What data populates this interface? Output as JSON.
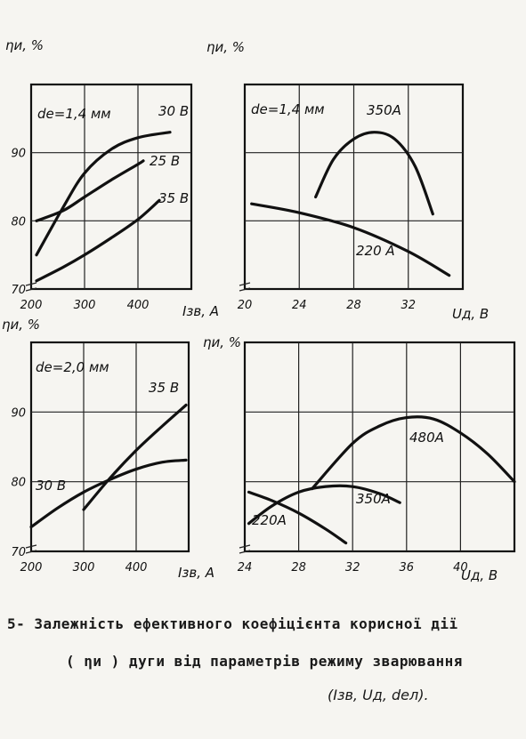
{
  "chart_data": [
    {
      "type": "line",
      "panel": "top-left",
      "ylabel": "ηи, %",
      "xlabel": "Iзв, A",
      "annotation": "de=1,4 мм",
      "xlim": [
        200,
        500
      ],
      "ylim": [
        70,
        100
      ],
      "xticks": [
        200,
        300,
        400
      ],
      "yticks": [
        70,
        80,
        90
      ],
      "series": [
        {
          "name": "30 B",
          "x": [
            210,
            260,
            300,
            350,
            400,
            460
          ],
          "y": [
            75,
            82,
            87,
            90.5,
            92.2,
            93
          ]
        },
        {
          "name": "25 B",
          "x": [
            210,
            260,
            300,
            350,
            400,
            410
          ],
          "y": [
            80,
            81.5,
            83.5,
            86,
            88.3,
            88.8
          ]
        },
        {
          "name": "35 B",
          "x": [
            210,
            260,
            300,
            350,
            400,
            440
          ],
          "y": [
            71.2,
            73.2,
            75,
            77.5,
            80.2,
            83
          ]
        }
      ]
    },
    {
      "type": "line",
      "panel": "top-right",
      "ylabel": "ηи, %",
      "xlabel": "Uд, B",
      "annotation": "de=1,4 мм",
      "xlim": [
        20,
        36
      ],
      "ylim": [
        70,
        100
      ],
      "xticks": [
        20,
        24,
        28,
        32
      ],
      "yticks": [],
      "series": [
        {
          "name": "350A",
          "x": [
            25.2,
            26.5,
            28,
            29.5,
            31,
            32.5,
            33.8
          ],
          "y": [
            83.5,
            89,
            92,
            93,
            92,
            88,
            81
          ]
        },
        {
          "name": "220 A",
          "x": [
            20.5,
            24,
            28,
            32,
            35
          ],
          "y": [
            82.5,
            81.2,
            79,
            75.5,
            72
          ]
        }
      ]
    },
    {
      "type": "line",
      "panel": "bottom-left",
      "ylabel": "ηи, %",
      "xlabel": "Iзв, A",
      "annotation": "de=2,0 мм",
      "xlim": [
        200,
        500
      ],
      "ylim": [
        70,
        100
      ],
      "xticks": [
        200,
        300,
        400
      ],
      "yticks": [
        70,
        80,
        90
      ],
      "series": [
        {
          "name": "35 B",
          "x": [
            300,
            350,
            400,
            450,
            495
          ],
          "y": [
            76,
            80.5,
            84.5,
            88,
            91
          ]
        },
        {
          "name": "30 B",
          "x": [
            200,
            250,
            300,
            350,
            400,
            450,
            495
          ],
          "y": [
            73.5,
            76.2,
            78.5,
            80.3,
            81.8,
            82.8,
            83.1
          ]
        }
      ]
    },
    {
      "type": "line",
      "panel": "bottom-right",
      "ylabel": "ηи, %",
      "xlabel": "Uд, B",
      "xlim": [
        24,
        44
      ],
      "ylim": [
        70,
        100
      ],
      "xticks": [
        24,
        28,
        32,
        36,
        40
      ],
      "yticks": [],
      "series": [
        {
          "name": "480A",
          "x": [
            29,
            32,
            34,
            36,
            38,
            40,
            42,
            44
          ],
          "y": [
            79,
            85.5,
            88,
            89.2,
            89,
            87,
            84,
            80
          ]
        },
        {
          "name": "350A",
          "x": [
            24.3,
            26,
            28,
            30,
            32,
            34,
            35.5
          ],
          "y": [
            74,
            76.5,
            78.5,
            79.3,
            79.3,
            78.3,
            77
          ]
        },
        {
          "name": "220A",
          "x": [
            24.3,
            26,
            28,
            30,
            31.5
          ],
          "y": [
            78.5,
            77.3,
            75.5,
            73.2,
            71.2
          ]
        }
      ]
    }
  ],
  "caption": {
    "line1": "5- Залежність ефективного коефіцієнта корисної дії",
    "line2": "( ηи ) дуги від  параметрів режиму зварювання",
    "line3": "(Iзв, Uд, dел)."
  }
}
